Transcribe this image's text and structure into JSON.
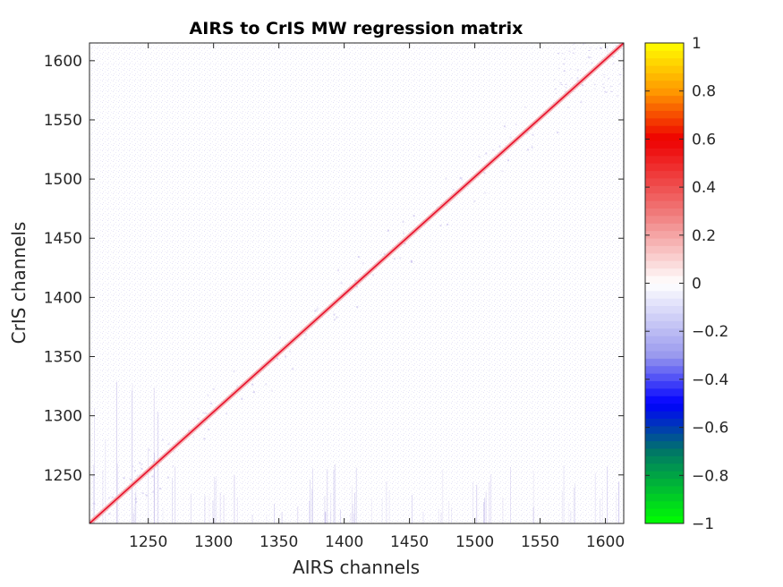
{
  "chart_data": {
    "type": "heatmap",
    "title": "AIRS to CrIS MW regression matrix",
    "xlabel": "AIRS channels",
    "ylabel": "CrIS channels",
    "xlim": [
      1205,
      1614
    ],
    "ylim": [
      1209,
      1615
    ],
    "x_ticks": [
      1250,
      1300,
      1350,
      1400,
      1450,
      1500,
      1550,
      1600
    ],
    "y_ticks": [
      1250,
      1300,
      1350,
      1400,
      1450,
      1500,
      1550,
      1600
    ],
    "x_tick_labels": [
      "1250",
      "1300",
      "1350",
      "1400",
      "1450",
      "1500",
      "1550",
      "1600"
    ],
    "y_tick_labels": [
      "1250",
      "1300",
      "1350",
      "1400",
      "1450",
      "1500",
      "1550",
      "1600"
    ],
    "diagonal": {
      "from": [
        1205,
        1209
      ],
      "to": [
        1614,
        1615
      ],
      "value": 0.6
    },
    "background_value": -0.02,
    "colorbar": {
      "range": [
        -1,
        1
      ],
      "ticks": [
        1,
        0.8,
        0.6,
        0.4,
        0.2,
        0,
        -0.2,
        -0.4,
        -0.6,
        -0.8,
        -1
      ],
      "tick_labels": [
        "1",
        "0.8",
        "0.6",
        "0.4",
        "0.2",
        "0",
        "−0.2",
        "−0.4",
        "−0.6",
        "−0.8",
        "−1"
      ],
      "colors": {
        "1": "#ffff00",
        "0.8": "#ff9900",
        "0.6": "#ee0000",
        "0.3": "#f07878",
        "0": "#ffffff",
        "-0.3": "#9999ee",
        "-0.5": "#0000ff",
        "-0.7": "#007766",
        "-1": "#00ff00"
      }
    }
  }
}
